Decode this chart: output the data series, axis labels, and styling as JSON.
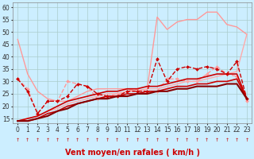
{
  "background_color": "#cceeff",
  "grid_color": "#aacccc",
  "xlabel": "Vent moyen/en rafales ( km/h )",
  "xlim": [
    -0.5,
    23.5
  ],
  "ylim": [
    13,
    62
  ],
  "yticks": [
    15,
    20,
    25,
    30,
    35,
    40,
    45,
    50,
    55,
    60
  ],
  "xticks": [
    0,
    1,
    2,
    3,
    4,
    5,
    6,
    7,
    8,
    9,
    10,
    11,
    12,
    13,
    14,
    15,
    16,
    17,
    18,
    19,
    20,
    21,
    22,
    23
  ],
  "series": [
    {
      "x": [
        0,
        1,
        2,
        3,
        4,
        5,
        6,
        7,
        8,
        9,
        10,
        11,
        12,
        13,
        14,
        15,
        16,
        17,
        18,
        19,
        20,
        21,
        22,
        23
      ],
      "y": [
        47,
        33,
        26,
        23,
        22,
        22,
        24,
        26,
        27,
        27,
        27,
        27,
        26,
        27,
        56,
        51,
        54,
        55,
        55,
        58,
        58,
        53,
        52,
        49
      ],
      "color": "#ff9999",
      "lw": 1.0,
      "marker": null,
      "ls": "-"
    },
    {
      "x": [
        0,
        1,
        2,
        3,
        4,
        5,
        6,
        7,
        8,
        9,
        10,
        11,
        12,
        13,
        14,
        15,
        16,
        17,
        18,
        19,
        20,
        21,
        22,
        23
      ],
      "y": [
        31,
        27,
        17,
        22,
        22,
        30,
        29,
        28,
        23,
        24,
        25,
        26,
        27,
        26,
        26,
        31,
        31,
        30,
        30,
        33,
        36,
        33,
        32,
        22
      ],
      "color": "#ff9999",
      "lw": 1.0,
      "marker": "D",
      "ms": 2,
      "ls": "--"
    },
    {
      "x": [
        0,
        1,
        2,
        3,
        4,
        5,
        6,
        7,
        8,
        9,
        10,
        11,
        12,
        13,
        14,
        15,
        16,
        17,
        18,
        19,
        20,
        21,
        22,
        23
      ],
      "y": [
        14,
        15,
        16,
        18,
        19,
        21,
        22,
        23,
        24,
        25,
        25,
        26,
        26,
        27,
        27,
        28,
        29,
        30,
        30,
        31,
        32,
        33,
        34,
        49
      ],
      "color": "#ffaaaa",
      "lw": 1.0,
      "marker": null,
      "ls": "-"
    },
    {
      "x": [
        0,
        1,
        2,
        3,
        4,
        5,
        6,
        7,
        8,
        9,
        10,
        11,
        12,
        13,
        14,
        15,
        16,
        17,
        18,
        19,
        20,
        21,
        22,
        23
      ],
      "y": [
        14,
        14,
        15,
        17,
        18,
        20,
        21,
        22,
        23,
        24,
        24,
        25,
        25,
        26,
        26,
        27,
        28,
        28,
        29,
        29,
        30,
        30,
        31,
        23
      ],
      "color": "#cc0000",
      "lw": 1.2,
      "marker": null,
      "ls": "-"
    },
    {
      "x": [
        0,
        1,
        2,
        3,
        4,
        5,
        6,
        7,
        8,
        9,
        10,
        11,
        12,
        13,
        14,
        15,
        16,
        17,
        18,
        19,
        20,
        21,
        22,
        23
      ],
      "y": [
        14,
        15,
        16,
        18,
        20,
        22,
        23,
        24,
        25,
        26,
        26,
        27,
        27,
        28,
        28,
        29,
        30,
        31,
        31,
        32,
        33,
        33,
        33,
        23
      ],
      "color": "#cc0000",
      "lw": 1.2,
      "marker": null,
      "ls": "-"
    },
    {
      "x": [
        0,
        1,
        2,
        3,
        4,
        5,
        6,
        7,
        8,
        9,
        10,
        11,
        12,
        13,
        14,
        15,
        16,
        17,
        18,
        19,
        20,
        21,
        22,
        23
      ],
      "y": [
        31,
        26,
        17,
        22,
        22,
        24,
        29,
        28,
        25,
        24,
        24,
        26,
        26,
        26,
        39,
        30,
        35,
        36,
        35,
        36,
        35,
        33,
        38,
        23
      ],
      "color": "#cc0000",
      "lw": 1.0,
      "marker": "D",
      "ms": 2,
      "ls": "--"
    },
    {
      "x": [
        0,
        1,
        2,
        3,
        4,
        5,
        6,
        7,
        8,
        9,
        10,
        11,
        12,
        13,
        14,
        15,
        16,
        17,
        18,
        19,
        20,
        21,
        22,
        23
      ],
      "y": [
        14,
        14,
        15,
        16,
        18,
        19,
        21,
        22,
        23,
        23,
        24,
        24,
        25,
        25,
        26,
        26,
        27,
        27,
        28,
        28,
        28,
        29,
        29,
        23
      ],
      "color": "#880000",
      "lw": 1.5,
      "marker": null,
      "ls": "-"
    }
  ],
  "arrow_color": "#cc0000",
  "xlabel_fontsize": 7,
  "tick_fontsize": 5.5
}
